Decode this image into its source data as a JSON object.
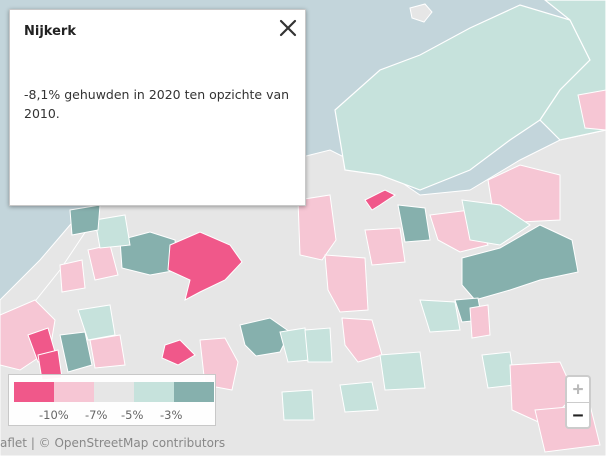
{
  "popup": {
    "title": "Nijkerk",
    "text": "-8,1% gehuwden in 2020 ten opzichte van 2010.",
    "close_icon": "close-icon"
  },
  "legend": {
    "colors": [
      "#f0588a",
      "#f6c6d4",
      "#e6e6e6",
      "#c6e2dc",
      "#86b0ad"
    ],
    "labels": [
      "-10%",
      "-7%",
      "-5%",
      "-3%"
    ]
  },
  "zoom": {
    "in_label": "+",
    "out_label": "−"
  },
  "attribution": {
    "text": "aflet | © OpenStreetMap contributors"
  },
  "map_colors": {
    "water": "#c3d5db",
    "land": "#e6e6e6",
    "border": "#ffffff"
  }
}
